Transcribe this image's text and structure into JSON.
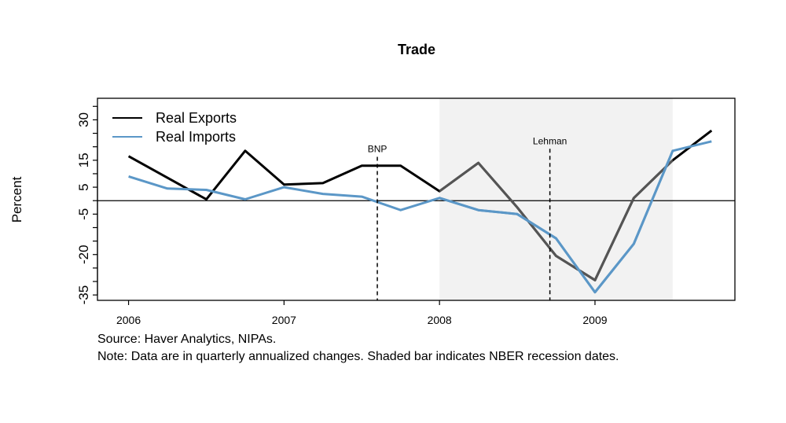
{
  "chart_data": {
    "type": "line",
    "title": "Trade",
    "ylabel": "Percent",
    "xlabel": "",
    "ylim": [
      -37,
      38
    ],
    "xlim": [
      2005.8,
      2009.9
    ],
    "x_ticks": [
      2006,
      2007,
      2008,
      2009
    ],
    "x_tick_labels": [
      "2006",
      "2007",
      "2008",
      "2009"
    ],
    "y_ticks": [
      -35,
      -30,
      -25,
      -20,
      -15,
      -10,
      -5,
      0,
      5,
      10,
      15,
      20,
      25,
      30,
      35
    ],
    "y_tick_labels": [
      {
        "value": -35,
        "label": "-35"
      },
      {
        "value": -20,
        "label": "-20"
      },
      {
        "value": -5,
        "label": "-5"
      },
      {
        "value": 5,
        "label": "5"
      },
      {
        "value": 15,
        "label": "15"
      },
      {
        "value": 30,
        "label": "30"
      }
    ],
    "zero_line": 0,
    "legend_position": "top-left",
    "grid": false,
    "recession_shading": {
      "start": 2008.0,
      "end": 2009.5,
      "color": "#f2f2f2",
      "line_color_inside": "#555555"
    },
    "events": [
      {
        "label": "BNP",
        "x": 2007.6,
        "label_y": 18
      },
      {
        "label": "Lehman",
        "x": 2008.71,
        "label_y": 21
      }
    ],
    "x": [
      2006.0,
      2006.25,
      2006.5,
      2006.75,
      2007.0,
      2007.25,
      2007.5,
      2007.75,
      2008.0,
      2008.25,
      2008.5,
      2008.75,
      2009.0,
      2009.25,
      2009.5,
      2009.75
    ],
    "series": [
      {
        "name": "Real Exports",
        "color": "#000000",
        "values": [
          16.5,
          8.5,
          0.5,
          18.5,
          6.0,
          6.5,
          13.0,
          13.0,
          3.5,
          14.0,
          -2.5,
          -20.5,
          -29.5,
          1.0,
          15.0,
          26.0
        ]
      },
      {
        "name": "Real Imports",
        "color": "#5b97c7",
        "values": [
          9.0,
          4.5,
          4.0,
          0.5,
          5.0,
          2.5,
          1.5,
          -3.5,
          1.0,
          -3.5,
          -5.0,
          -14.0,
          -34.0,
          -16.0,
          18.5,
          22.0
        ]
      }
    ]
  },
  "notes": {
    "source": "Source: Haver Analytics, NIPAs.",
    "note": "Note: Data are in quarterly annualized changes. Shaded bar indicates NBER recession dates."
  }
}
